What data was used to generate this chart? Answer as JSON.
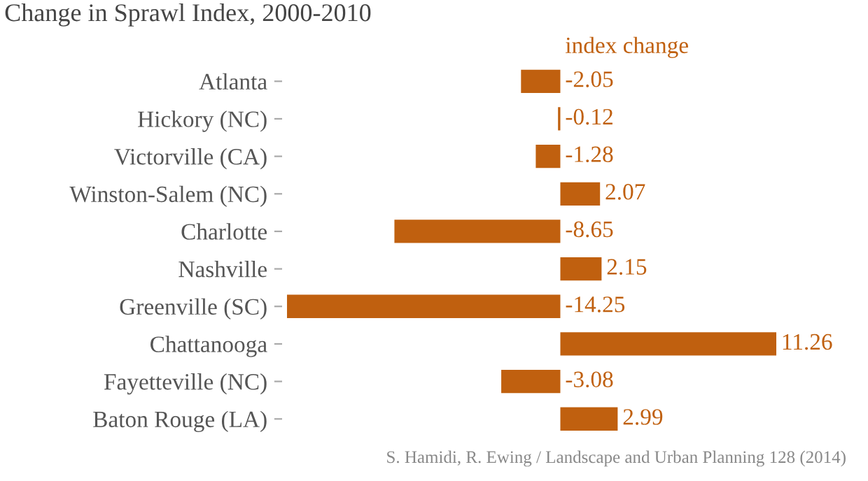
{
  "chart_data": {
    "type": "bar",
    "orientation": "horizontal",
    "title": "Change in Sprawl Index, 2000-2010",
    "categories": [
      "Atlanta",
      "Hickory (NC)",
      "Victorville (CA)",
      "Winston-Salem (NC)",
      "Charlotte",
      "Nashville",
      "Greenville (SC)",
      "Chattanooga",
      "Fayetteville (NC)",
      "Baton Rouge (LA)"
    ],
    "values": [
      -2.05,
      -0.12,
      -1.28,
      2.07,
      -8.65,
      2.15,
      -14.25,
      11.26,
      -3.08,
      2.99
    ],
    "color": "#c0600f",
    "data_labels": true,
    "annotations": [
      "index change",
      "S. Hamidi, R. Ewing / Landscape and Urban Planning 128 (2014)"
    ]
  }
}
